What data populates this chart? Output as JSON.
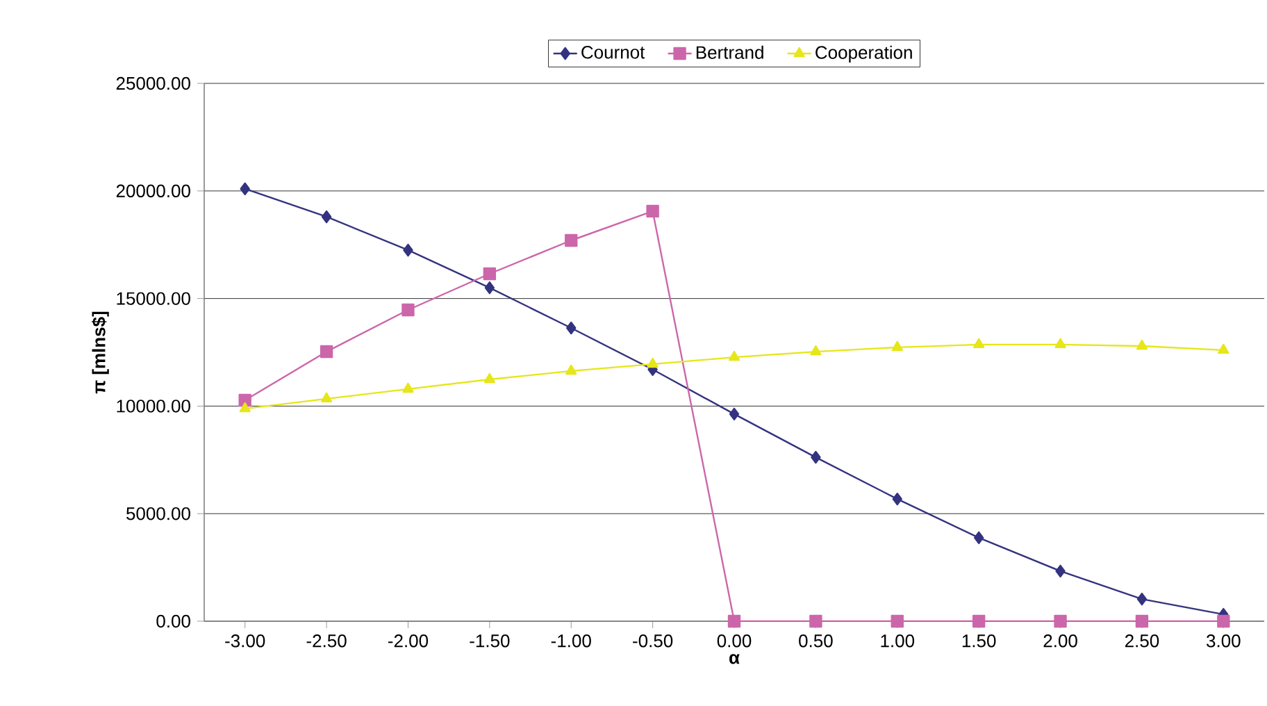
{
  "chart_data": {
    "type": "line",
    "xlabel": "α",
    "ylabel": "π [mlns$]",
    "categories": [
      "-3.00",
      "-2.50",
      "-2.00",
      "-1.50",
      "-1.00",
      "-0.50",
      "0.00",
      "0.50",
      "1.00",
      "1.50",
      "2.00",
      "2.50",
      "3.00"
    ],
    "series": [
      {
        "name": "Cournot",
        "color": "#333380",
        "marker": "diamond",
        "values": [
          20100,
          18800,
          17250,
          15500,
          13630,
          11700,
          9630,
          7620,
          5680,
          3880,
          2330,
          1030,
          320
        ]
      },
      {
        "name": "Bertrand",
        "color": "#cc66aa",
        "marker": "square",
        "values": [
          10270,
          12530,
          14470,
          16150,
          17700,
          19060,
          0,
          0,
          0,
          0,
          0,
          0,
          0
        ]
      },
      {
        "name": "Cooperation",
        "color": "#e6e619",
        "marker": "triangle",
        "values": [
          9880,
          10340,
          10790,
          11240,
          11630,
          11950,
          12270,
          12530,
          12730,
          12860,
          12860,
          12790,
          12600
        ]
      }
    ],
    "ylim": [
      0,
      25000
    ],
    "yticks": [
      {
        "value": 0,
        "label": "0.00"
      },
      {
        "value": 5000,
        "label": "5000.00"
      },
      {
        "value": 10000,
        "label": "10000.00"
      },
      {
        "value": 15000,
        "label": "15000.00"
      },
      {
        "value": 20000,
        "label": "20000.00"
      },
      {
        "value": 25000,
        "label": "25000.00"
      }
    ],
    "grid": "y",
    "legend": "top",
    "line_style": "solid"
  }
}
